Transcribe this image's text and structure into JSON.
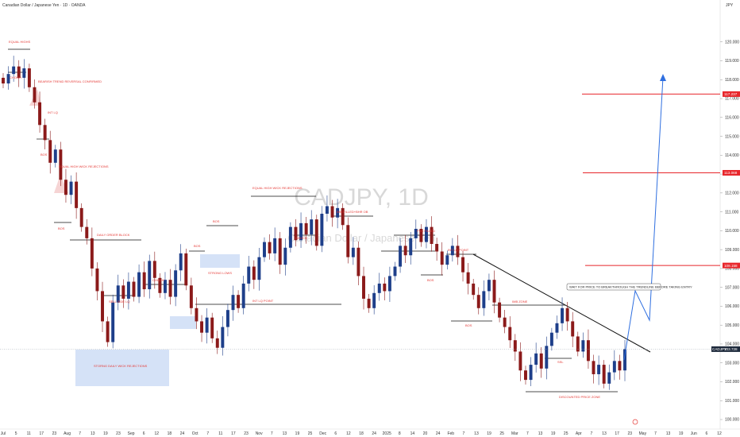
{
  "header": {
    "title": "Canadian Dollar / Japanese Yen · 1D · OANDA",
    "currency": "JPY"
  },
  "watermark": {
    "symbol": "CADJPY, 1D",
    "name": "Canadian Dollar / Japanese Yen"
  },
  "colors": {
    "bull": "#1e3f8a",
    "bear": "#8b1a1a",
    "level_red": "#e8262b",
    "arrow_blue": "#2f6fe0",
    "zone_blue": "#d5e2f7",
    "zone_pink": "#f6d4d4",
    "trend_line": "#111111",
    "current_price_bg": "#1e2a3c"
  },
  "chart_data": {
    "type": "candlestick",
    "symbol": "CADJPY",
    "timeframe": "1D",
    "ylim": [
      100,
      121
    ],
    "y_ticks": [
      100.0,
      101.0,
      102.0,
      103.0,
      104.0,
      105.0,
      106.0,
      107.0,
      108.0,
      109.0,
      110.0,
      111.0,
      112.0,
      113.0,
      114.0,
      115.0,
      116.0,
      117.0,
      118.0,
      119.0,
      120.0
    ],
    "x_ticks": [
      "Jul",
      "5",
      "11",
      "17",
      "23",
      "Aug",
      "7",
      "13",
      "19",
      "23",
      "Sep",
      "6",
      "12",
      "18",
      "24",
      "Oct",
      "7",
      "11",
      "17",
      "23",
      "Nov",
      "7",
      "13",
      "19",
      "25",
      "Dec",
      "6",
      "12",
      "18",
      "24",
      "2025",
      "8",
      "14",
      "20",
      "24",
      "Feb",
      "7",
      "13",
      "19",
      "25",
      "Mar",
      "7",
      "13",
      "19",
      "25",
      "Apr",
      "7",
      "13",
      "17",
      "23",
      "May",
      "7",
      "13",
      "19",
      "Jun",
      "6",
      "12"
    ],
    "current_price": 103.728,
    "current_price_label": "CADJPY",
    "current_price_text": "103.728",
    "targets": [
      {
        "value": 108.158,
        "label": "108.158"
      },
      {
        "value": 113.068,
        "label": "113.068"
      },
      {
        "value": 117.237,
        "label": "117.237"
      }
    ],
    "closes": [
      117.8,
      118.3,
      118.7,
      118.1,
      118.6,
      117.6,
      116.8,
      115.6,
      114.8,
      113.6,
      114.3,
      112.7,
      111.9,
      112.6,
      111.2,
      110.2,
      109.6,
      108.0,
      106.8,
      105.2,
      104.1,
      106.2,
      107.1,
      106.4,
      107.3,
      106.5,
      107.8,
      106.9,
      108.4,
      107.5,
      106.7,
      107.4,
      106.5,
      107.9,
      108.8,
      107.1,
      105.9,
      105.2,
      104.6,
      105.4,
      104.3,
      103.8,
      104.9,
      105.8,
      106.6,
      105.9,
      107.2,
      108.1,
      107.4,
      108.6,
      109.4,
      108.8,
      109.6,
      108.2,
      109.1,
      110.2,
      109.5,
      110.4,
      109.8,
      110.6,
      109.2,
      110.9,
      111.3,
      110.7,
      111.2,
      110.3,
      108.6,
      109.1,
      107.6,
      106.4,
      105.9,
      106.7,
      107.2,
      106.8,
      107.6,
      108.1,
      109.2,
      108.7,
      109.6,
      110.1,
      109.4,
      110.2,
      109.3,
      108.9,
      108.2,
      108.7,
      109.2,
      108.6,
      107.8,
      107.2,
      106.6,
      105.9,
      106.8,
      107.4,
      106.2,
      105.4,
      104.9,
      104.2,
      103.6,
      102.6,
      102.1,
      102.9,
      103.5,
      102.7,
      103.9,
      104.6,
      105.1,
      105.9,
      105.2,
      104.4,
      103.6,
      104.2,
      103.1,
      102.4,
      102.9,
      101.9,
      102.5,
      103.1,
      102.6,
      103.728
    ],
    "annotations": [
      {
        "text": "EQUAL HIGHS",
        "color": "red"
      },
      {
        "text": "CHOCH",
        "color": "red"
      },
      {
        "text": "BEARISH TREND REVERSAL CONFIRMED",
        "color": "red"
      },
      {
        "text": "INT LQ",
        "color": "red"
      },
      {
        "text": "BOS",
        "color": "red"
      },
      {
        "text": "EQUAL HIGH WICK REJECTIONS",
        "color": "red"
      },
      {
        "text": "BOS",
        "color": "red"
      },
      {
        "text": "DAILY ORDER BLOCK",
        "color": "red"
      },
      {
        "text": "SELL SIDE LQ",
        "color": "red"
      },
      {
        "text": "CHOCH",
        "color": "red"
      },
      {
        "text": "STORNG DAILY WICK REJECTIONS",
        "color": "red"
      },
      {
        "text": "BOS",
        "color": "red"
      },
      {
        "text": "BOS",
        "color": "red"
      },
      {
        "text": "STRONG LOWS",
        "color": "red"
      },
      {
        "text": "INT LQ POINT",
        "color": "red"
      },
      {
        "text": "EQUAL HIGH WICK REJECTIONS",
        "color": "red"
      },
      {
        "text": "IMB FILLED+BHR OB",
        "color": "red"
      },
      {
        "text": "CHOCH",
        "color": "red"
      },
      {
        "text": "FVG FILLED",
        "color": "red"
      },
      {
        "text": "INT LQ POINT",
        "color": "red"
      },
      {
        "text": "BOS",
        "color": "red"
      },
      {
        "text": "IMB ZONE",
        "color": "red"
      },
      {
        "text": "BOS",
        "color": "red"
      },
      {
        "text": "SSL",
        "color": "red"
      },
      {
        "text": "DISCOUNTED PRICE ZONE",
        "color": "red"
      },
      {
        "text": "WAIT FOR PRICE TO BREAKTHROUGH THE TRENDLINE BEFORE TAKING ENTRY",
        "color": "black"
      }
    ]
  }
}
